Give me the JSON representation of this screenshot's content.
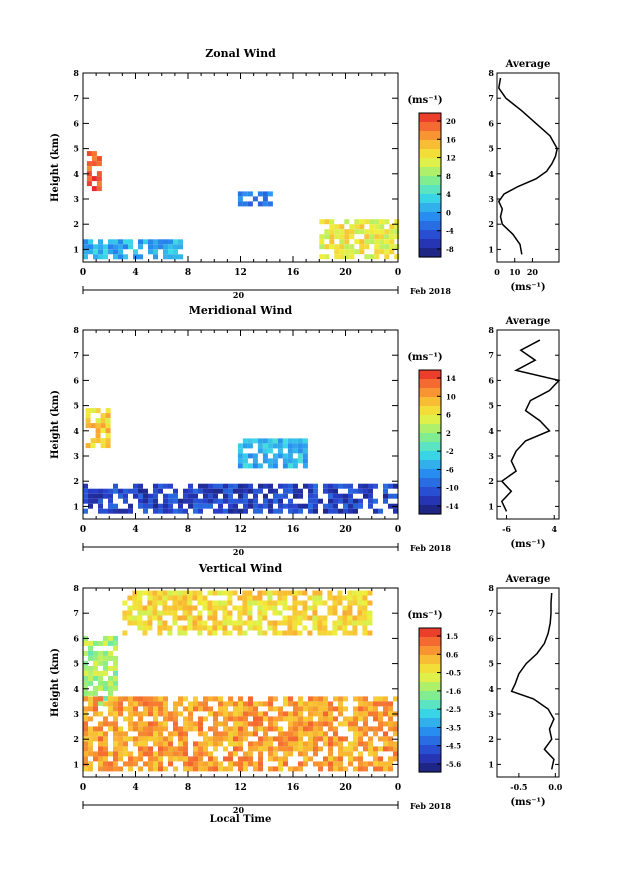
{
  "chart_data": [
    {
      "type": "heatmap",
      "title": "Zonal Wind",
      "xlabel": "",
      "ylabel": "Height (km)",
      "ylim": [
        0.5,
        8
      ],
      "y_ticks": [
        "1",
        "2",
        "3",
        "4",
        "5",
        "6",
        "7",
        "8"
      ],
      "x_ticks": [
        "0",
        "4",
        "8",
        "12",
        "16",
        "20",
        "0"
      ],
      "date_marker": "20",
      "date_label": "Feb 2018",
      "colorbar": {
        "unit": "(ms⁻¹)",
        "ticks": [
          "20",
          "16",
          "12",
          "8",
          "4",
          "0",
          "-4",
          "-8"
        ],
        "range": [
          -10,
          22
        ]
      },
      "features": [
        {
          "desc": "strong westerly core",
          "x": [
            0.3,
            1.3
          ],
          "y": [
            3.5,
            4.9
          ],
          "value": 20
        },
        {
          "desc": "near-surface easterly band",
          "x": [
            0,
            7.5
          ],
          "y": [
            0.8,
            1.4
          ],
          "value": 1
        },
        {
          "desc": "mid-level structure",
          "x": [
            11.8,
            14.2
          ],
          "y": [
            2.8,
            3.3
          ],
          "value": -2
        },
        {
          "desc": "afternoon westerlies",
          "x": [
            18,
            24
          ],
          "y": [
            0.8,
            2.2
          ],
          "value": 12
        }
      ],
      "average_profile": {
        "title": "Average",
        "xlabel": "(ms⁻¹)",
        "x_ticks": [
          "0",
          "10",
          "20"
        ],
        "xlim": [
          0,
          35
        ],
        "y": [
          0.8,
          1.2,
          1.6,
          2.0,
          2.3,
          2.6,
          2.9,
          3.2,
          3.5,
          3.8,
          4.1,
          4.4,
          4.7,
          5.0,
          5.5,
          6.0,
          6.5,
          7.0,
          7.4,
          7.8
        ],
        "x": [
          14,
          13,
          9,
          3,
          2,
          3,
          1,
          4,
          12,
          22,
          28,
          31,
          33,
          34,
          30,
          22,
          14,
          5,
          1,
          2
        ]
      }
    },
    {
      "type": "heatmap",
      "title": "Meridional Wind",
      "xlabel": "",
      "ylabel": "Height (km)",
      "ylim": [
        0.5,
        8
      ],
      "y_ticks": [
        "1",
        "2",
        "3",
        "4",
        "5",
        "6",
        "7",
        "8"
      ],
      "x_ticks": [
        "0",
        "4",
        "8",
        "12",
        "16",
        "20",
        "0"
      ],
      "date_marker": "20",
      "date_label": "Feb 2018",
      "colorbar": {
        "unit": "(ms⁻¹)",
        "ticks": [
          "14",
          "10",
          "6",
          "2",
          "-2",
          "-6",
          "-10",
          "-14"
        ],
        "range": [
          -15,
          16
        ]
      },
      "features": [
        {
          "desc": "southerly core",
          "x": [
            0.2,
            1.8
          ],
          "y": [
            3.4,
            4.9
          ],
          "value": 8
        },
        {
          "desc": "near-surface northerlies",
          "x": [
            0,
            24
          ],
          "y": [
            0.8,
            1.9
          ],
          "value": -11
        },
        {
          "desc": "mid-level cluster",
          "x": [
            11.8,
            17
          ],
          "y": [
            2.7,
            3.7
          ],
          "value": -4
        }
      ],
      "average_profile": {
        "title": "Average",
        "xlabel": "(ms⁻¹)",
        "x_ticks": [
          "-6",
          "4"
        ],
        "xlim": [
          -8,
          5
        ],
        "y": [
          0.8,
          1.2,
          1.6,
          2.0,
          2.4,
          2.8,
          3.2,
          3.6,
          4.0,
          4.4,
          4.8,
          5.2,
          5.6,
          6.0,
          6.4,
          6.8,
          7.2,
          7.6
        ],
        "x": [
          -6,
          -7,
          -5,
          -7,
          -4,
          -5,
          -4,
          -2,
          3,
          1,
          -2,
          -1,
          3,
          5,
          -4,
          0,
          -3,
          1
        ]
      }
    },
    {
      "type": "heatmap",
      "title": "Vertical Wind",
      "xlabel": "Local Time",
      "ylabel": "Height (km)",
      "ylim": [
        0.5,
        8
      ],
      "y_ticks": [
        "1",
        "2",
        "3",
        "4",
        "5",
        "6",
        "7",
        "8"
      ],
      "x_ticks": [
        "0",
        "4",
        "8",
        "12",
        "16",
        "20",
        "0"
      ],
      "date_marker": "20",
      "date_label": "Feb 2018",
      "colorbar": {
        "unit": "(ms⁻¹)",
        "ticks": [
          "1.5",
          "0.6",
          "-0.5",
          "-1.6",
          "-2.5",
          "-3.5",
          "-4.5",
          "-5.6"
        ],
        "range": [
          -6,
          2
        ]
      },
      "features": [
        {
          "desc": "upper-level patches",
          "x": [
            3,
            22
          ],
          "y": [
            6.2,
            7.9
          ],
          "value": -0.2
        },
        {
          "desc": "early morning column",
          "x": [
            0,
            2.5
          ],
          "y": [
            3.5,
            6.1
          ],
          "value": -1.4
        },
        {
          "desc": "boundary layer updraft",
          "x": [
            0,
            24
          ],
          "y": [
            0.8,
            3.7
          ],
          "value": 0.6
        }
      ],
      "average_profile": {
        "title": "Average",
        "xlabel": "(ms⁻¹)",
        "x_ticks": [
          "-0.5",
          "0.0"
        ],
        "xlim": [
          -0.8,
          0.05
        ],
        "y": [
          0.8,
          1.2,
          1.6,
          2.0,
          2.4,
          2.8,
          3.2,
          3.6,
          3.9,
          4.2,
          4.6,
          5.0,
          5.4,
          5.8,
          6.2,
          6.6,
          7.0,
          7.4,
          7.8
        ],
        "x": [
          -0.05,
          -0.02,
          -0.15,
          -0.05,
          -0.08,
          -0.02,
          -0.1,
          -0.3,
          -0.6,
          -0.55,
          -0.5,
          -0.4,
          -0.25,
          -0.15,
          -0.1,
          -0.07,
          -0.06,
          -0.06,
          -0.05
        ]
      }
    }
  ]
}
